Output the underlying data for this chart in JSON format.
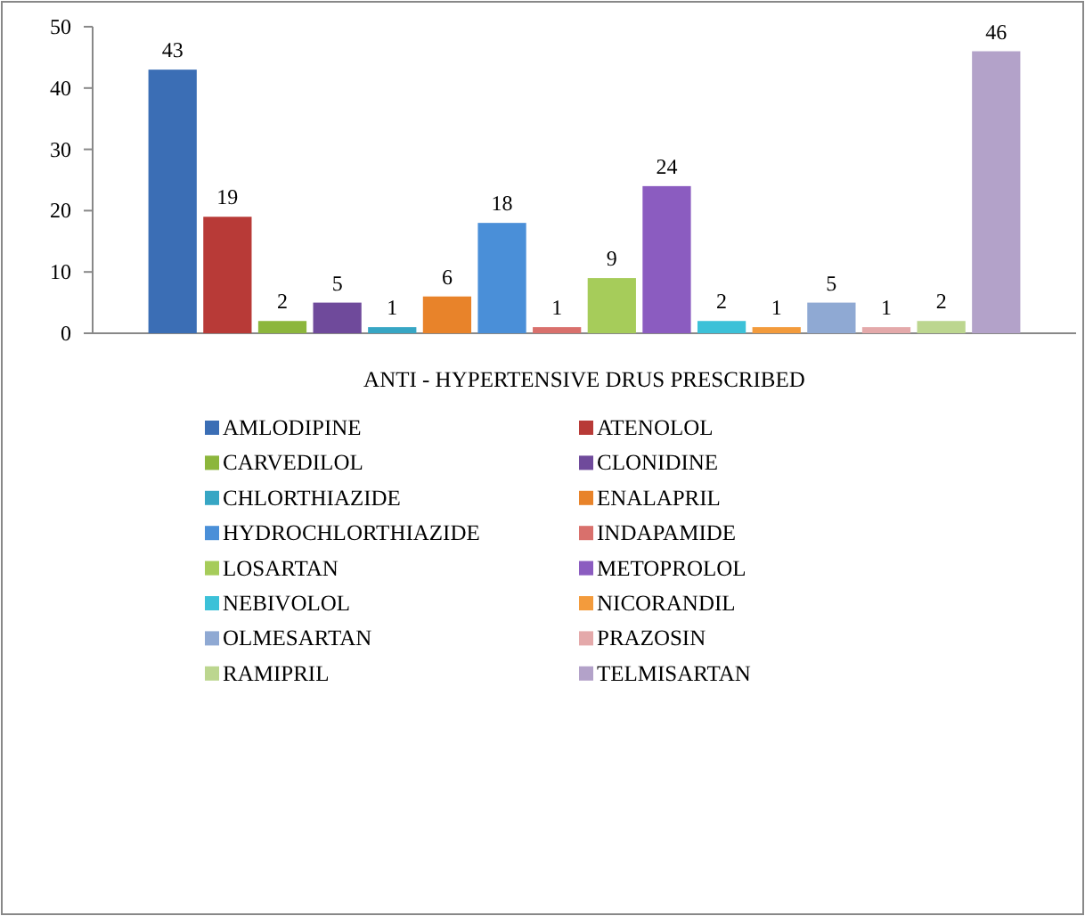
{
  "chart_data": {
    "type": "bar",
    "xlabel": "ANTI - HYPERTENSIVE DRUS PRESCRIBED",
    "categories": [
      null
    ],
    "ylim": [
      0,
      50
    ],
    "yticks": [
      0,
      10,
      20,
      30,
      40,
      50
    ],
    "grid": false,
    "legend": "bottom",
    "data_labels": true,
    "series": [
      {
        "name": "AMLODIPINE",
        "color": "#3b6eb5",
        "values": [
          43
        ]
      },
      {
        "name": "ATENOLOL",
        "color": "#b83a37",
        "values": [
          19
        ]
      },
      {
        "name": "CARVEDILOL",
        "color": "#8cb63c",
        "values": [
          2
        ]
      },
      {
        "name": "CLONIDINE",
        "color": "#6f4a9b",
        "values": [
          5
        ]
      },
      {
        "name": "CHLORTHIAZIDE",
        "color": "#37a6c4",
        "values": [
          1
        ]
      },
      {
        "name": "ENALAPRIL",
        "color": "#e8832a",
        "values": [
          6
        ]
      },
      {
        "name": "HYDROCHLORTHIAZIDE",
        "color": "#4a8fd8",
        "values": [
          18
        ]
      },
      {
        "name": "INDAPAMIDE",
        "color": "#d9706c",
        "values": [
          1
        ]
      },
      {
        "name": "LOSARTAN",
        "color": "#a6cc5a",
        "values": [
          9
        ]
      },
      {
        "name": "METOPROLOL",
        "color": "#8b5cc0",
        "values": [
          24
        ]
      },
      {
        "name": "NEBIVOLOL",
        "color": "#3cc1d8",
        "values": [
          2
        ]
      },
      {
        "name": "NICORANDIL",
        "color": "#f39b3c",
        "values": [
          1
        ]
      },
      {
        "name": "OLMESARTAN",
        "color": "#8fa9d3",
        "values": [
          5
        ]
      },
      {
        "name": "PRAZOSIN",
        "color": "#e4a9aa",
        "values": [
          1
        ]
      },
      {
        "name": "RAMIPRIL",
        "color": "#bcd68f",
        "values": [
          2
        ]
      },
      {
        "name": "TELMISARTAN",
        "color": "#b3a2c9",
        "values": [
          46
        ]
      }
    ]
  }
}
